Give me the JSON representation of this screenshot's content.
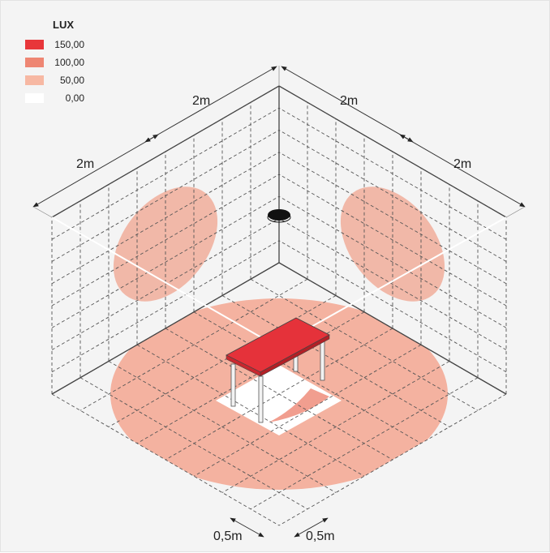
{
  "legend": {
    "title": "LUX",
    "items": [
      {
        "label": "150,00",
        "color": "#e8363a"
      },
      {
        "label": "100,00",
        "color": "#ee8673"
      },
      {
        "label": "50,00",
        "color": "#f7b8a3"
      },
      {
        "label": "0,00",
        "color": "#ffffff"
      }
    ]
  },
  "dimensions": {
    "top_left_outer": "2m",
    "top_left_inner": "2m",
    "top_right_inner": "2m",
    "top_right_outer": "2m",
    "bottom_left": "0,5m",
    "bottom_right": "0,5m"
  },
  "colors": {
    "floor_light": "#f4b2a0",
    "wall_light": "#f1b8a8",
    "table_top": "#e5323a",
    "lamp": "#111111",
    "grid": "#555555"
  }
}
